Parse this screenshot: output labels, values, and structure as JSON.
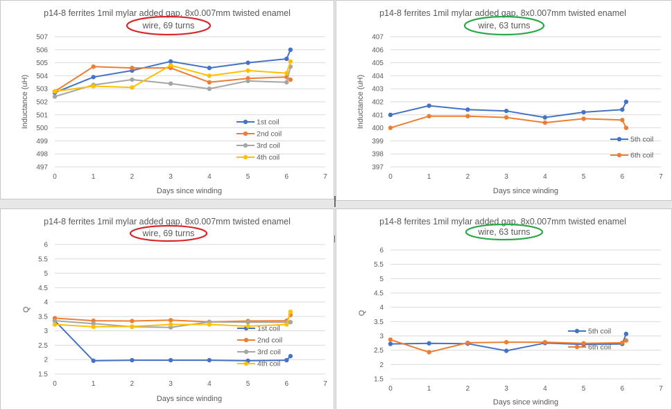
{
  "chart_data": [
    {
      "type": "line",
      "title": "p14-8 ferrites 1mil mylar added gap, 8x0.007mm twisted enamel",
      "subtitle": "wire, 69 turns",
      "subtitle_circle_color": "#d9262b",
      "xlabel": "Days since winding",
      "ylabel": "Inductance (uH)",
      "xlim": [
        0,
        7
      ],
      "ylim": [
        497,
        507
      ],
      "xticks": [
        "0",
        "1",
        "2",
        "3",
        "4",
        "5",
        "6",
        "7"
      ],
      "yticks": [
        "497",
        "498",
        "499",
        "500",
        "501",
        "502",
        "503",
        "504",
        "505",
        "506",
        "507"
      ],
      "grid": "horizontal",
      "legend_position": "right",
      "series": [
        {
          "name": "1st coil",
          "color": "#4472c4",
          "x": [
            0,
            1,
            2,
            3,
            4,
            5,
            6,
            6.1
          ],
          "y": [
            502.7,
            503.9,
            504.4,
            505.1,
            504.6,
            505.0,
            505.3,
            506.0
          ]
        },
        {
          "name": "2nd coil",
          "color": "#ed7d31",
          "x": [
            0,
            1,
            2,
            3,
            4,
            5,
            6,
            6.1
          ],
          "y": [
            502.8,
            504.7,
            504.6,
            504.6,
            503.5,
            503.8,
            503.9,
            503.7
          ]
        },
        {
          "name": "3rd coil",
          "color": "#a5a5a5",
          "x": [
            0,
            1,
            2,
            3,
            4,
            5,
            6,
            6.1
          ],
          "y": [
            502.4,
            503.3,
            503.7,
            503.4,
            503.0,
            503.6,
            503.5,
            504.7
          ]
        },
        {
          "name": "4th coil",
          "color": "#ffc000",
          "x": [
            0,
            1,
            2,
            3,
            4,
            5,
            6,
            6.1
          ],
          "y": [
            502.8,
            503.2,
            503.1,
            504.8,
            504.0,
            504.4,
            504.2,
            505.1
          ]
        }
      ]
    },
    {
      "type": "line",
      "title": "p14-8 ferrites 1mil mylar added gap, 8x0.007mm twisted enamel",
      "subtitle": "wire, 63 turns",
      "subtitle_circle_color": "#2aa84a",
      "xlabel": "Days since winding",
      "ylabel": "Inductance (uH)",
      "xlim": [
        0,
        7
      ],
      "ylim": [
        397,
        407
      ],
      "xticks": [
        "0",
        "1",
        "2",
        "3",
        "4",
        "5",
        "6",
        "7"
      ],
      "yticks": [
        "397",
        "398",
        "399",
        "400",
        "401",
        "402",
        "403",
        "404",
        "405",
        "406",
        "407"
      ],
      "grid": "horizontal",
      "legend_position": "right",
      "series": [
        {
          "name": "5th coil",
          "color": "#4472c4",
          "x": [
            0,
            1,
            2,
            3,
            4,
            5,
            6,
            6.1
          ],
          "y": [
            401.0,
            401.7,
            401.4,
            401.3,
            400.8,
            401.2,
            401.4,
            402.0
          ]
        },
        {
          "name": "6th coil",
          "color": "#ed7d31",
          "x": [
            0,
            1,
            2,
            3,
            4,
            5,
            6,
            6.1
          ],
          "y": [
            400.0,
            400.9,
            400.9,
            400.8,
            400.4,
            400.7,
            400.6,
            400.0
          ]
        }
      ]
    },
    {
      "type": "line",
      "title": "p14-8 ferrites 1mil mylar added gap, 8x0.007mm twisted enamel",
      "subtitle": "wire, 69 turns",
      "subtitle_circle_color": "#d9262b",
      "xlabel": "Days since winding",
      "ylabel": "Q",
      "xlim": [
        0,
        7
      ],
      "ylim": [
        1.5,
        6
      ],
      "xticks": [
        "0",
        "1",
        "2",
        "3",
        "4",
        "5",
        "6",
        "7"
      ],
      "yticks": [
        "1.5",
        "2",
        "2.5",
        "3",
        "3.5",
        "4",
        "4.5",
        "5",
        "5.5",
        "6"
      ],
      "grid": "horizontal",
      "legend_position": "right",
      "series": [
        {
          "name": "1st coil",
          "color": "#4472c4",
          "x": [
            0,
            1,
            2,
            3,
            4,
            5,
            6,
            6.1
          ],
          "y": [
            3.35,
            1.96,
            1.98,
            1.98,
            1.98,
            1.96,
            1.98,
            2.12
          ]
        },
        {
          "name": "2nd coil",
          "color": "#ed7d31",
          "x": [
            0,
            1,
            2,
            3,
            4,
            5,
            6,
            6.1
          ],
          "y": [
            3.44,
            3.35,
            3.34,
            3.37,
            3.31,
            3.34,
            3.35,
            3.55
          ]
        },
        {
          "name": "3rd coil",
          "color": "#a5a5a5",
          "x": [
            0,
            1,
            2,
            3,
            4,
            5,
            6,
            6.1
          ],
          "y": [
            3.35,
            3.25,
            3.14,
            3.12,
            3.31,
            3.3,
            3.3,
            3.3
          ]
        },
        {
          "name": "4th coil",
          "color": "#ffc000",
          "x": [
            0,
            1,
            2,
            3,
            4,
            5,
            6,
            6.1
          ],
          "y": [
            3.22,
            3.14,
            3.15,
            3.22,
            3.22,
            3.16,
            3.22,
            3.66
          ]
        }
      ]
    },
    {
      "type": "line",
      "title": "p14-8 ferrites 1mil mylar added gap, 8x0.007mm twisted enamel",
      "subtitle": "wire, 63 turns",
      "subtitle_circle_color": "#2aa84a",
      "xlabel": "Days since winding",
      "ylabel": "Q",
      "xlim": [
        0,
        7
      ],
      "ylim": [
        1.5,
        6
      ],
      "xticks": [
        "0",
        "1",
        "2",
        "3",
        "4",
        "5",
        "6",
        "7"
      ],
      "yticks": [
        "1.5",
        "2",
        "2.5",
        "3",
        "3.5",
        "4",
        "4.5",
        "5",
        "5.5",
        "6"
      ],
      "grid": "horizontal",
      "legend_position": "right",
      "series": [
        {
          "name": "5th coil",
          "color": "#4472c4",
          "x": [
            0,
            1,
            2,
            3,
            4,
            5,
            6,
            6.1
          ],
          "y": [
            2.72,
            2.74,
            2.73,
            2.48,
            2.75,
            2.7,
            2.72,
            3.07
          ]
        },
        {
          "name": "6th coil",
          "color": "#ed7d31",
          "x": [
            0,
            1,
            2,
            3,
            4,
            5,
            6,
            6.1
          ],
          "y": [
            2.87,
            2.43,
            2.76,
            2.78,
            2.78,
            2.74,
            2.76,
            2.84
          ]
        }
      ]
    }
  ]
}
